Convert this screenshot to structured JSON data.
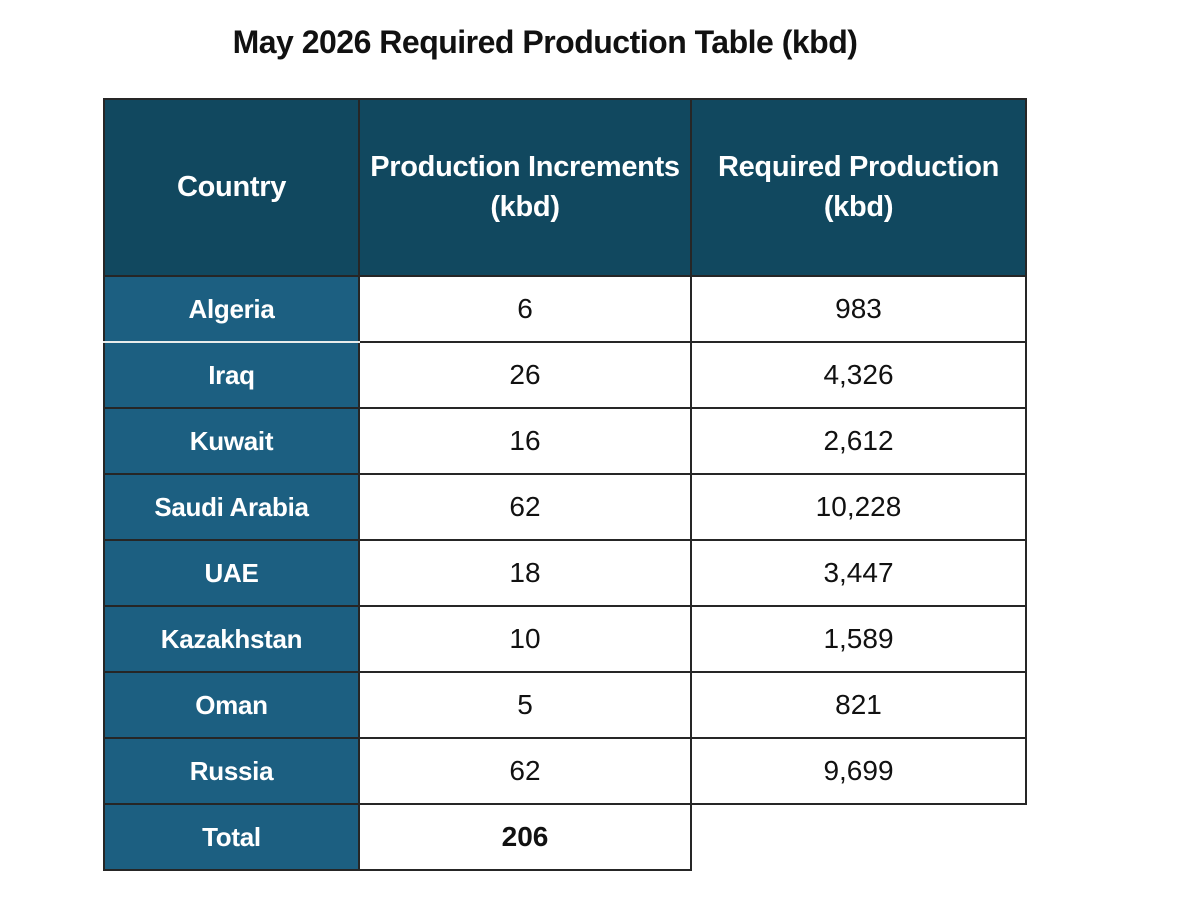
{
  "page_title": "May 2026 Required Production Table (kbd)",
  "table": {
    "headers": {
      "country": "Country",
      "increments": "Production Increments (kbd)",
      "required": "Required Production (kbd)"
    },
    "rows": [
      {
        "country": "Algeria",
        "increments": "6",
        "required": "983"
      },
      {
        "country": "Iraq",
        "increments": "26",
        "required": "4,326"
      },
      {
        "country": "Kuwait",
        "increments": "16",
        "required": "2,612"
      },
      {
        "country": "Saudi Arabia",
        "increments": "62",
        "required": "10,228"
      },
      {
        "country": "UAE",
        "increments": "18",
        "required": "3,447"
      },
      {
        "country": "Kazakhstan",
        "increments": "10",
        "required": "1,589"
      },
      {
        "country": "Oman",
        "increments": "5",
        "required": "821"
      },
      {
        "country": "Russia",
        "increments": "62",
        "required": "9,699"
      }
    ],
    "total": {
      "label": "Total",
      "increments": "206"
    }
  },
  "colors": {
    "header_bg": "#11485f",
    "label_bg": "#1c5f81",
    "header_text": "#ffffff",
    "body_text": "#111111",
    "border_dark": "#262626",
    "border_light": "#e9eceb",
    "page_bg": "#ffffff"
  },
  "chart_data": {
    "type": "table",
    "title": "May 2026 Required Production Table (kbd)",
    "columns": [
      "Country",
      "Production Increments (kbd)",
      "Required Production (kbd)"
    ],
    "rows": [
      [
        "Algeria",
        6,
        983
      ],
      [
        "Iraq",
        26,
        4326
      ],
      [
        "Kuwait",
        16,
        2612
      ],
      [
        "Saudi Arabia",
        62,
        10228
      ],
      [
        "UAE",
        18,
        3447
      ],
      [
        "Kazakhstan",
        10,
        1589
      ],
      [
        "Oman",
        5,
        821
      ],
      [
        "Russia",
        62,
        9699
      ]
    ],
    "total": [
      "Total",
      206,
      null
    ]
  }
}
